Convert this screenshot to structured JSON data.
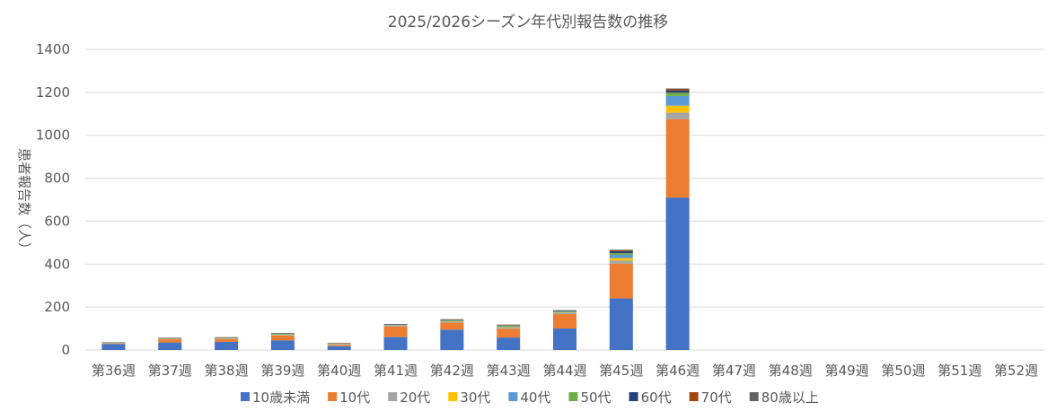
{
  "chart_data": {
    "type": "bar",
    "stacked": true,
    "title": "2025/2026シーズン年代別報告数の推移",
    "ylabel": "患者報告数（人）",
    "xlabel": "",
    "ylim": [
      0,
      1400
    ],
    "yticks": [
      0,
      200,
      400,
      600,
      800,
      1000,
      1200,
      1400
    ],
    "grid": true,
    "legend_position": "bottom",
    "categories": [
      "第36週",
      "第37週",
      "第38週",
      "第39週",
      "第40週",
      "第41週",
      "第42週",
      "第43週",
      "第44週",
      "第45週",
      "第46週",
      "第47週",
      "第48週",
      "第49週",
      "第50週",
      "第51週",
      "第52週"
    ],
    "series": [
      {
        "name": "10歳未満",
        "color": "#4472C4",
        "values": [
          28,
          35,
          38,
          45,
          18,
          60,
          95,
          58,
          100,
          240,
          710,
          0,
          0,
          0,
          0,
          0,
          0
        ]
      },
      {
        "name": "10代",
        "color": "#ED7D31",
        "values": [
          3,
          15,
          12,
          22,
          6,
          50,
          32,
          40,
          67,
          162,
          365,
          0,
          0,
          0,
          0,
          0,
          0
        ]
      },
      {
        "name": "20代",
        "color": "#A5A5A5",
        "values": [
          2,
          2,
          3,
          3,
          2,
          3,
          5,
          5,
          5,
          14,
          30,
          0,
          0,
          0,
          0,
          0,
          0
        ]
      },
      {
        "name": "30代",
        "color": "#FFC000",
        "values": [
          1,
          1,
          1,
          2,
          1,
          1,
          2,
          3,
          2,
          12,
          33,
          0,
          0,
          0,
          0,
          0,
          0
        ]
      },
      {
        "name": "40代",
        "color": "#5B9BD5",
        "values": [
          1,
          1,
          1,
          1,
          1,
          2,
          2,
          3,
          3,
          15,
          45,
          0,
          0,
          0,
          0,
          0,
          0
        ]
      },
      {
        "name": "50代",
        "color": "#70AD47",
        "values": [
          1,
          1,
          1,
          2,
          1,
          1,
          3,
          5,
          4,
          8,
          15,
          0,
          0,
          0,
          0,
          0,
          0
        ]
      },
      {
        "name": "60代",
        "color": "#264478",
        "values": [
          1,
          1,
          1,
          2,
          1,
          2,
          2,
          2,
          3,
          9,
          10,
          0,
          0,
          0,
          0,
          0,
          0
        ]
      },
      {
        "name": "70代",
        "color": "#9E480E",
        "values": [
          0,
          1,
          2,
          1,
          2,
          1,
          2,
          2,
          1,
          4,
          6,
          0,
          0,
          0,
          0,
          0,
          0
        ]
      },
      {
        "name": "80歳以上",
        "color": "#636363",
        "values": [
          0,
          1,
          1,
          1,
          1,
          1,
          1,
          1,
          1,
          3,
          4,
          0,
          0,
          0,
          0,
          0,
          0
        ]
      }
    ]
  }
}
